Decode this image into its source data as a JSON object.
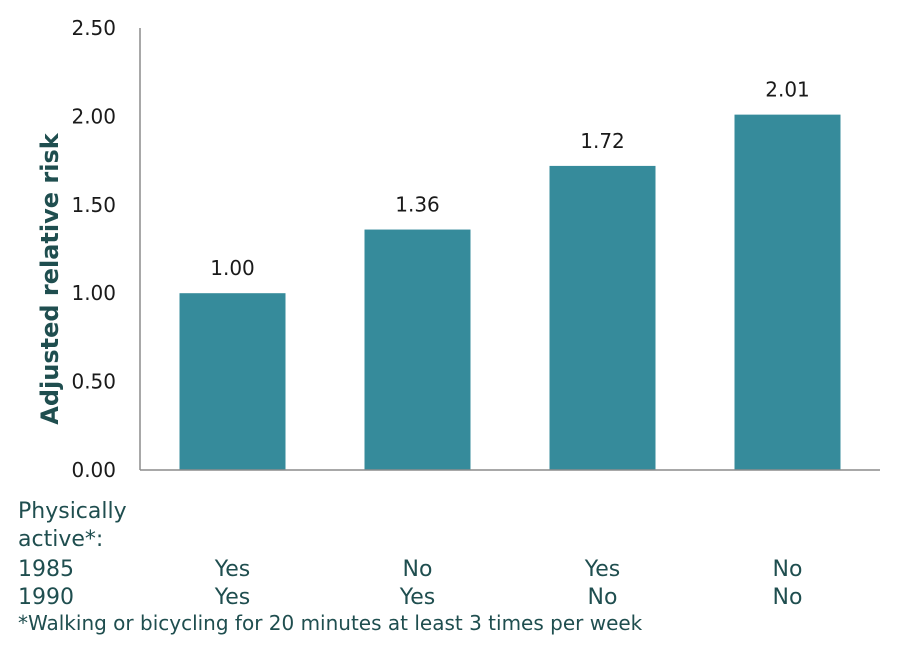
{
  "chart_data": {
    "type": "bar",
    "ylabel": "Adjusted relative risk",
    "ylim": [
      0,
      2.5
    ],
    "yticks": [
      "0.00",
      "0.50",
      "1.00",
      "1.50",
      "2.00",
      "2.50"
    ],
    "values": [
      1.0,
      1.36,
      1.72,
      2.01
    ],
    "data_labels": [
      "1.00",
      "1.36",
      "1.72",
      "2.01"
    ],
    "bar_color": "#368b9b",
    "axis_color": "#8c8c8c",
    "label_color": "#1f4e4f",
    "grid": false
  },
  "table": {
    "header_label": "Physically active*:",
    "rows": [
      {
        "label": "1985",
        "values": [
          "Yes",
          "No",
          "Yes",
          "No"
        ]
      },
      {
        "label": "1990",
        "values": [
          "Yes",
          "Yes",
          "No",
          "No"
        ]
      }
    ],
    "footnote": "*Walking or bicycling for 20 minutes at least 3 times per week"
  }
}
